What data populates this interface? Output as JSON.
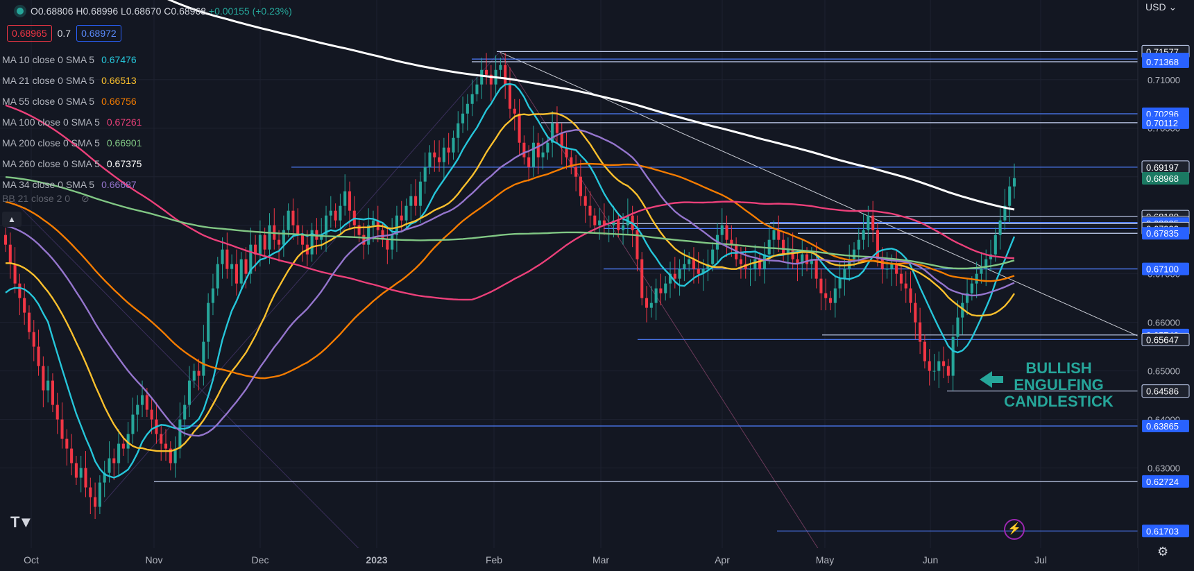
{
  "ohlc": {
    "open": "O0.68806",
    "high": "H0.68996",
    "low": "L0.68670",
    "close": "C0.68968",
    "change": "+0.00155 (+0.23%)"
  },
  "quote": {
    "bid": "0.68965",
    "spread": "0.7",
    "ask": "0.68972"
  },
  "currency": "USD",
  "moving_averages": [
    {
      "label": "MA 10 close 0 SMA 5",
      "value": "0.67476",
      "color": "#26c6da"
    },
    {
      "label": "MA 21 close 0 SMA 5",
      "value": "0.66513",
      "color": "#fbc02d"
    },
    {
      "label": "MA 55 close 0 SMA 5",
      "value": "0.66756",
      "color": "#f57c00"
    },
    {
      "label": "MA 100 close 0 SMA 5",
      "value": "0.67261",
      "color": "#ec407a"
    },
    {
      "label": "MA 200 close 0 SMA 5",
      "value": "0.66901",
      "color": "#81c784"
    },
    {
      "label": "MA 260 close 0 SMA 5",
      "value": "0.67375",
      "color": "#ffffff"
    },
    {
      "label": "MA 34 close 0 SMA 5",
      "value": "0.66687",
      "color": "#9575cd"
    }
  ],
  "bb_label": "BB 21 close 2 0",
  "annotation": "BULLISH\nENGULFING\nCANDLESTICK",
  "chart_data": {
    "type": "candlestick",
    "title": "",
    "x_labels": [
      "Oct",
      "Nov",
      "Dec",
      "2023",
      "Feb",
      "Mar",
      "Apr",
      "May",
      "Jun",
      "Jul"
    ],
    "y_ticks": [
      0.71,
      0.7,
      0.69,
      0.68,
      0.67,
      0.66,
      0.65,
      0.64,
      0.63
    ],
    "ylim": [
      0.6135,
      0.7264
    ],
    "level_lines": [
      0.71577,
      0.71423,
      0.71368,
      0.70296,
      0.70112,
      0.69197,
      0.6818,
      0.68058,
      0.68035,
      0.67933,
      0.67835,
      0.671,
      0.6574,
      0.65647,
      0.64586,
      0.63865,
      0.62724,
      0.61703
    ],
    "price_labels": [
      {
        "text": "0.71577",
        "value": 0.71577,
        "style": "dark"
      },
      {
        "text": "0.71423",
        "value": 0.71423,
        "style": "blue"
      },
      {
        "text": "0.71368",
        "value": 0.71368,
        "style": "blue"
      },
      {
        "text": "0.70296",
        "value": 0.70296,
        "style": "blue"
      },
      {
        "text": "0.70112",
        "value": 0.70112,
        "style": "blue"
      },
      {
        "text": "0.69197",
        "value": 0.69197,
        "style": "dark"
      },
      {
        "text": "0.68968",
        "value": 0.68968,
        "style": "green"
      },
      {
        "text": "0.68180",
        "value": 0.6818,
        "style": "dark"
      },
      {
        "text": "0.68058",
        "value": 0.68058,
        "style": "dark"
      },
      {
        "text": "0.68035",
        "value": 0.68035,
        "style": "blue"
      },
      {
        "text": "0.67933",
        "value": 0.67933,
        "style": "dark"
      },
      {
        "text": "0.67835",
        "value": 0.67835,
        "style": "blue"
      },
      {
        "text": "0.67100",
        "value": 0.671,
        "style": "blue"
      },
      {
        "text": "0.65740",
        "value": 0.6574,
        "style": "blue"
      },
      {
        "text": "0.65647",
        "value": 0.65647,
        "style": "dark"
      },
      {
        "text": "0.64586",
        "value": 0.64586,
        "style": "dark"
      },
      {
        "text": "0.63865",
        "value": 0.63865,
        "style": "blue"
      },
      {
        "text": "0.62724",
        "value": 0.62724,
        "style": "blue"
      },
      {
        "text": "0.61703",
        "value": 0.61703,
        "style": "blue"
      }
    ],
    "closes": [
      0.676,
      0.672,
      0.668,
      0.665,
      0.662,
      0.658,
      0.655,
      0.651,
      0.646,
      0.648,
      0.643,
      0.64,
      0.636,
      0.634,
      0.631,
      0.628,
      0.63,
      0.626,
      0.624,
      0.622,
      0.627,
      0.629,
      0.632,
      0.631,
      0.635,
      0.634,
      0.637,
      0.641,
      0.643,
      0.645,
      0.642,
      0.64,
      0.637,
      0.635,
      0.634,
      0.631,
      0.634,
      0.64,
      0.643,
      0.648,
      0.65,
      0.649,
      0.656,
      0.664,
      0.667,
      0.672,
      0.675,
      0.671,
      0.672,
      0.668,
      0.673,
      0.67,
      0.676,
      0.674,
      0.678,
      0.675,
      0.68,
      0.677,
      0.676,
      0.679,
      0.683,
      0.68,
      0.678,
      0.676,
      0.674,
      0.679,
      0.677,
      0.678,
      0.682,
      0.683,
      0.681,
      0.684,
      0.687,
      0.683,
      0.68,
      0.678,
      0.676,
      0.68,
      0.681,
      0.679,
      0.677,
      0.675,
      0.678,
      0.682,
      0.681,
      0.684,
      0.686,
      0.684,
      0.689,
      0.692,
      0.695,
      0.694,
      0.693,
      0.696,
      0.695,
      0.698,
      0.701,
      0.703,
      0.705,
      0.707,
      0.709,
      0.712,
      0.711,
      0.709,
      0.712,
      0.713,
      0.709,
      0.704,
      0.703,
      0.697,
      0.694,
      0.692,
      0.697,
      0.694,
      0.695,
      0.697,
      0.701,
      0.699,
      0.696,
      0.694,
      0.692,
      0.69,
      0.686,
      0.684,
      0.682,
      0.68,
      0.681,
      0.68,
      0.68,
      0.681,
      0.679,
      0.68,
      0.682,
      0.679,
      0.673,
      0.665,
      0.663,
      0.664,
      0.667,
      0.666,
      0.668,
      0.67,
      0.669,
      0.671,
      0.672,
      0.673,
      0.671,
      0.67,
      0.671,
      0.672,
      0.675,
      0.678,
      0.68,
      0.677,
      0.676,
      0.673,
      0.672,
      0.671,
      0.671,
      0.673,
      0.671,
      0.674,
      0.677,
      0.679,
      0.677,
      0.674,
      0.675,
      0.673,
      0.672,
      0.674,
      0.672,
      0.673,
      0.669,
      0.666,
      0.665,
      0.664,
      0.667,
      0.669,
      0.671,
      0.673,
      0.675,
      0.677,
      0.679,
      0.682,
      0.679,
      0.673,
      0.671,
      0.671,
      0.672,
      0.67,
      0.668,
      0.667,
      0.664,
      0.66,
      0.656,
      0.652,
      0.65,
      0.65,
      0.652,
      0.651,
      0.649,
      0.657,
      0.661,
      0.664,
      0.666,
      0.668,
      0.67,
      0.671,
      0.673,
      0.674,
      0.678,
      0.681,
      0.684,
      0.688,
      0.6897
    ]
  }
}
